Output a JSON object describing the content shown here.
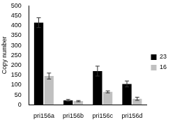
{
  "chart_data": {
    "type": "bar",
    "y_label": "Copy number",
    "categories": [
      "pri156a",
      "pri156b",
      "pri156c",
      "pri156d"
    ],
    "series": [
      {
        "name": "23",
        "color": "#000000",
        "values": [
          415,
          22,
          170,
          105
        ],
        "errors": [
          25,
          5,
          25,
          15
        ]
      },
      {
        "name": "16",
        "color": "#c0c0c0",
        "values": [
          145,
          18,
          65,
          30
        ],
        "errors": [
          15,
          3,
          5,
          8
        ]
      }
    ],
    "ylim": [
      0,
      500
    ],
    "yticks": [
      0,
      50,
      100,
      150,
      200,
      250,
      300,
      350,
      400,
      450,
      500
    ],
    "grid": false,
    "legend": "right"
  }
}
